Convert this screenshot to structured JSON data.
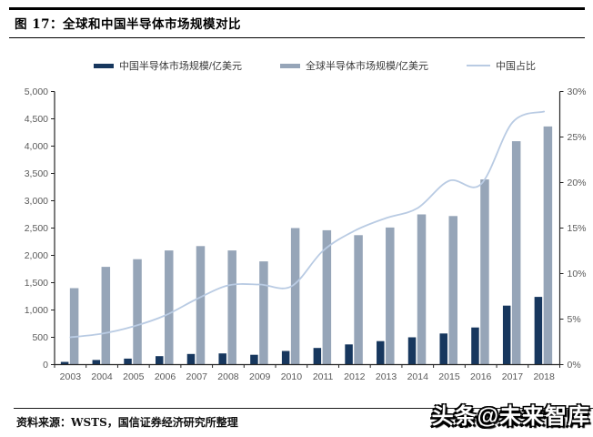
{
  "header": {
    "title": "图 17：全球和中国半导体市场规模对比"
  },
  "footer": {
    "source": "资料来源：WSTS，国信证券经济研究所整理",
    "watermark": "头条@未来智库"
  },
  "colors": {
    "china_bar": "#17375e",
    "global_bar": "#96a5b8",
    "share_line": "#b9cbe3",
    "axis": "#262626",
    "tick_text": "#595959"
  },
  "chart_data": {
    "type": "bar",
    "subtype": "dual-axis bar + smoothed line combo",
    "categories": [
      "2003",
      "2004",
      "2005",
      "2006",
      "2007",
      "2008",
      "2009",
      "2010",
      "2011",
      "2012",
      "2013",
      "2014",
      "2015",
      "2016",
      "2017",
      "2018"
    ],
    "series": [
      {
        "name": "中国半导体市场规模/亿美元",
        "type": "bar",
        "axis": "left",
        "color": "#17375e",
        "values": [
          50,
          85,
          110,
          155,
          195,
          205,
          180,
          250,
          305,
          370,
          430,
          500,
          570,
          680,
          1080,
          1240
        ]
      },
      {
        "name": "全球半导体市场规模/亿美元",
        "type": "bar",
        "axis": "left",
        "color": "#96a5b8",
        "values": [
          1400,
          1790,
          1930,
          2090,
          2170,
          2090,
          1890,
          2500,
          2460,
          2370,
          2510,
          2750,
          2720,
          3390,
          4090,
          4360
        ]
      },
      {
        "name": "中国占比",
        "type": "line",
        "axis": "right",
        "color": "#b9cbe3",
        "values_pct": [
          3.0,
          3.4,
          4.2,
          5.4,
          7.2,
          8.7,
          8.8,
          8.6,
          12.5,
          14.7,
          16.1,
          17.2,
          20.2,
          19.8,
          26.6,
          27.8
        ]
      }
    ],
    "left_axis": {
      "min": 0,
      "max": 5000,
      "step": 500,
      "tick_labels": [
        "0",
        "500",
        "1,000",
        "1,500",
        "2,000",
        "2,500",
        "3,000",
        "3,500",
        "4,000",
        "4,500",
        "5,000"
      ]
    },
    "right_axis": {
      "min": 0,
      "max": 30,
      "step": 5,
      "tick_labels": [
        "0%",
        "5%",
        "10%",
        "15%",
        "20%",
        "25%",
        "30%"
      ]
    },
    "grid": false,
    "legend_position": "top"
  }
}
